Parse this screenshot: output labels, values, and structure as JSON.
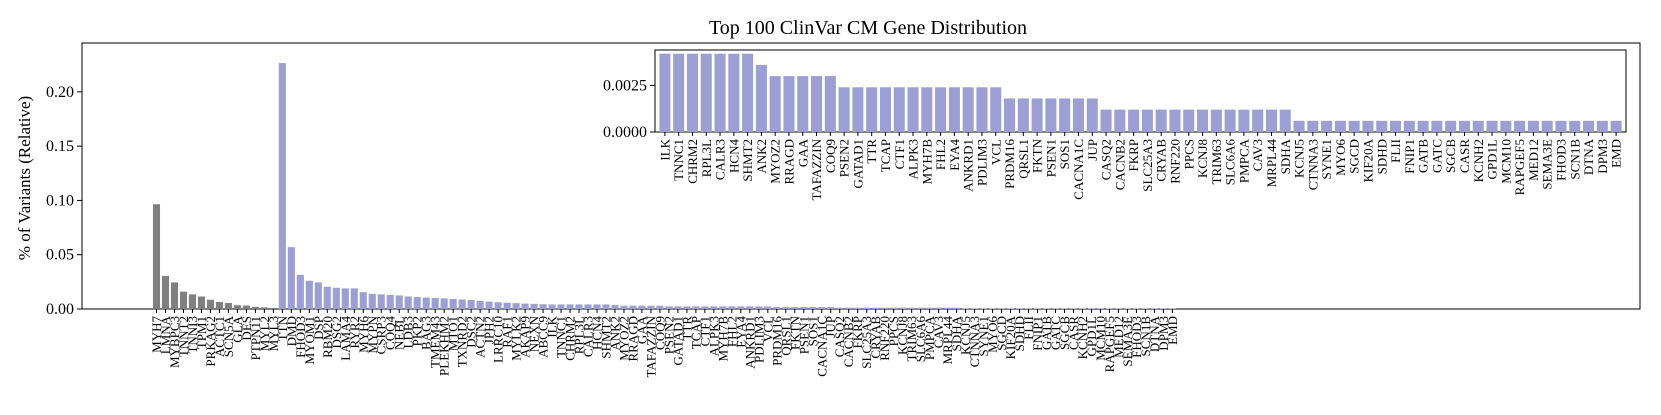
{
  "chart_data": {
    "type": "bar",
    "title": "Top 100 ClinVar CM Gene Distribution",
    "ylabel": "% of Variants (Relative)",
    "xlabel": "",
    "ylim": [
      0,
      0.245
    ],
    "yticks": [
      "0.00",
      "0.05",
      "0.10",
      "0.15",
      "0.20"
    ],
    "grid": false,
    "colors": {
      "known": "#808080",
      "other": "#9c9fd3"
    },
    "known_genes": {
      "categories": [
        "MYH7",
        "LMNA",
        "MYBPC3",
        "TNNT2",
        "TNNI3",
        "TPM1",
        "PRKAG2",
        "ACTC1",
        "SCN5A",
        "GLA",
        "DES",
        "PTPN11",
        "MYL2",
        "MYL3"
      ],
      "values": [
        0.0965,
        0.0305,
        0.0245,
        0.016,
        0.0135,
        0.0115,
        0.0085,
        0.0065,
        0.0055,
        0.0035,
        0.0032,
        0.002,
        0.0015,
        0.001
      ]
    },
    "other_genes": {
      "categories": [
        "TTN",
        "DMD",
        "FHOD3",
        "MYOM1",
        "DSP",
        "RBM20",
        "DSG2",
        "LAMA4",
        "RYR2",
        "MYH6",
        "MYPN",
        "CSRP3",
        "COQ4",
        "NEBL",
        "LDB3",
        "PKP2",
        "BAG3",
        "TMEM43",
        "PLEKHM2",
        "MTO1",
        "TXNRD2",
        "DSC2",
        "ACTN2",
        "JPH2",
        "LRRC10",
        "RAF1",
        "MYLK2",
        "AKAP9",
        "NEXN",
        "ABCC9",
        "ILK",
        "TNNC1",
        "CHRM2",
        "RPL3L",
        "CALR3",
        "HCN4",
        "SHMT2",
        "ANK2",
        "MYOZ2",
        "RRAGD",
        "GAA",
        "TAFAZZIN",
        "COQ9",
        "PSEN2",
        "GATAD1",
        "TTR",
        "TCAP",
        "CTF1",
        "ALPK3",
        "MYH7B",
        "FHL2",
        "EYA4",
        "ANKRD1",
        "PDLIM3",
        "VCL",
        "PRDM16",
        "QRSL1",
        "FKTN",
        "PSEN1",
        "SOS1",
        "CACNA1C",
        "JUP",
        "CASQ2",
        "CACNB2",
        "FKRP",
        "SLC25A3",
        "CRYAB",
        "RNF220",
        "PPCS",
        "KCNJ8",
        "TRIM63",
        "SLC6A6",
        "PMPCA",
        "CAV3",
        "MRPL44",
        "SDHA",
        "KCNJ5",
        "CTNNA3",
        "SYNE1",
        "MYO6",
        "SGCD",
        "KIF20A",
        "SDHD",
        "FLII",
        "FNIP1",
        "GATB",
        "GATC",
        "SGCB",
        "CASR",
        "KCNH2",
        "GPD1L",
        "MCM10",
        "RAPGEF5",
        "MED12",
        "SEMA3E",
        "FHOD3",
        "SCN1B",
        "DTNA",
        "DPM3",
        "EMD"
      ],
      "values": [
        0.2265,
        0.057,
        0.0315,
        0.026,
        0.0245,
        0.0205,
        0.0195,
        0.019,
        0.019,
        0.0155,
        0.014,
        0.0135,
        0.013,
        0.0125,
        0.0115,
        0.011,
        0.0105,
        0.0102,
        0.0098,
        0.0092,
        0.0088,
        0.0083,
        0.0075,
        0.0068,
        0.0062,
        0.0058,
        0.0054,
        0.005,
        0.0047,
        0.0044,
        0.0042,
        0.0042,
        0.0042,
        0.0042,
        0.0042,
        0.0042,
        0.0042,
        0.0036,
        0.003,
        0.003,
        0.003,
        0.003,
        0.003,
        0.0024,
        0.0024,
        0.0024,
        0.0024,
        0.0024,
        0.0024,
        0.0024,
        0.0024,
        0.0024,
        0.0024,
        0.0024,
        0.0024,
        0.0018,
        0.0018,
        0.0018,
        0.0018,
        0.0018,
        0.0018,
        0.0018,
        0.0012,
        0.0012,
        0.0012,
        0.0012,
        0.0012,
        0.0012,
        0.0012,
        0.0012,
        0.0012,
        0.0012,
        0.0012,
        0.0012,
        0.0012,
        0.0012,
        0.0006,
        0.0006,
        0.0006,
        0.0006,
        0.0006,
        0.0006,
        0.0006,
        0.0006,
        0.0006,
        0.0006,
        0.0006,
        0.0006,
        0.0006,
        0.0006,
        0.0006,
        0.0006,
        0.0006,
        0.0006,
        0.0006,
        0.0006,
        0.0006,
        0.0006,
        0.0006,
        0.0006
      ]
    },
    "inset": {
      "ylim": [
        0,
        0.0044
      ],
      "yticks": [
        "0.0000",
        "0.0025"
      ],
      "categories": [
        "ILK",
        "TNNC1",
        "CHRM2",
        "RPL3L",
        "CALR3",
        "HCN4",
        "SHMT2",
        "ANK2",
        "MYOZ2",
        "RRAGD",
        "GAA",
        "TAFAZZIN",
        "COQ9",
        "PSEN2",
        "GATAD1",
        "TTR",
        "TCAP",
        "CTF1",
        "ALPK3",
        "MYH7B",
        "FHL2",
        "EYA4",
        "ANKRD1",
        "PDLIM3",
        "VCL",
        "PRDM16",
        "QRSL1",
        "FKTN",
        "PSEN1",
        "SOS1",
        "CACNA1C",
        "JUP",
        "CASQ2",
        "CACNB2",
        "FKRP",
        "SLC25A3",
        "CRYAB",
        "RNF220",
        "PPCS",
        "KCNJ8",
        "TRIM63",
        "SLC6A6",
        "PMPCA",
        "CAV3",
        "MRPL44",
        "SDHA",
        "KCNJ5",
        "CTNNA3",
        "SYNE1",
        "MYO6",
        "SGCD",
        "KIF20A",
        "SDHD",
        "FLII",
        "FNIP1",
        "GATB",
        "GATC",
        "SGCB",
        "CASR",
        "KCNH2",
        "GPD1L",
        "MCM10",
        "RAPGEF5",
        "MED12",
        "SEMA3E",
        "FHOD3",
        "SCN1B",
        "DTNA",
        "DPM3",
        "EMD"
      ],
      "values": [
        0.0042,
        0.0042,
        0.0042,
        0.0042,
        0.0042,
        0.0042,
        0.0042,
        0.0036,
        0.003,
        0.003,
        0.003,
        0.003,
        0.003,
        0.0024,
        0.0024,
        0.0024,
        0.0024,
        0.0024,
        0.0024,
        0.0024,
        0.0024,
        0.0024,
        0.0024,
        0.0024,
        0.0024,
        0.0018,
        0.0018,
        0.0018,
        0.0018,
        0.0018,
        0.0018,
        0.0018,
        0.0012,
        0.0012,
        0.0012,
        0.0012,
        0.0012,
        0.0012,
        0.0012,
        0.0012,
        0.0012,
        0.0012,
        0.0012,
        0.0012,
        0.0012,
        0.0012,
        0.0006,
        0.0006,
        0.0006,
        0.0006,
        0.0006,
        0.0006,
        0.0006,
        0.0006,
        0.0006,
        0.0006,
        0.0006,
        0.0006,
        0.0006,
        0.0006,
        0.0006,
        0.0006,
        0.0006,
        0.0006,
        0.0006,
        0.0006,
        0.0006,
        0.0006,
        0.0006,
        0.0006
      ]
    }
  }
}
